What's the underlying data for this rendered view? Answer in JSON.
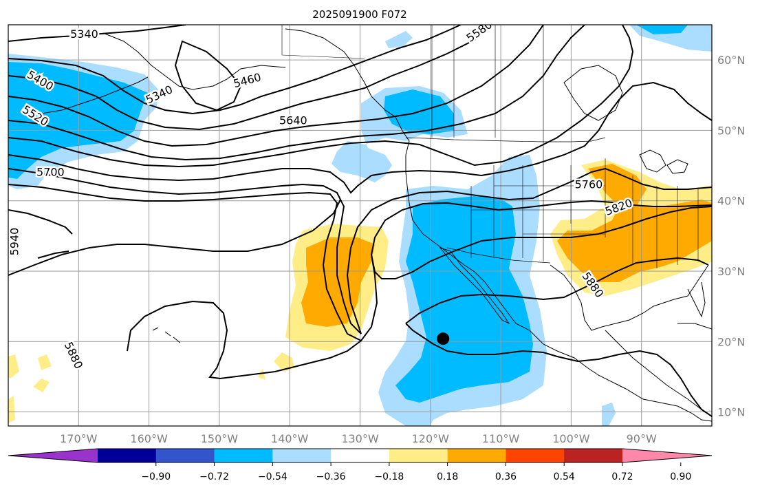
{
  "title": "2025091900 F072",
  "map": {
    "lon_range": [
      -180,
      -80
    ],
    "lat_range": [
      8,
      65
    ],
    "meridians": [
      -170,
      -160,
      -150,
      -140,
      -130,
      -120,
      -110,
      -100,
      -90
    ],
    "parallels": [
      10,
      20,
      30,
      40,
      50,
      60
    ],
    "lon_labels": [
      "170°W",
      "160°W",
      "150°W",
      "140°W",
      "130°W",
      "120°W",
      "110°W",
      "100°W",
      "90°W"
    ],
    "lat_labels": [
      "10°N",
      "20°N",
      "30°N",
      "40°N",
      "50°N",
      "60°N"
    ],
    "marker": {
      "name": "storm-center",
      "lon": -118.2,
      "lat": 20.4
    }
  },
  "contour_labels": [
    {
      "text": "5340",
      "lon": -169.2,
      "lat": 63.6,
      "angle": 0
    },
    {
      "text": "5400",
      "lon": -175.5,
      "lat": 57.0,
      "angle": 30
    },
    {
      "text": "5520",
      "lon": -176.2,
      "lat": 52.0,
      "angle": 32
    },
    {
      "text": "5340",
      "lon": -158.5,
      "lat": 55.0,
      "angle": -25
    },
    {
      "text": "5460",
      "lon": -146.0,
      "lat": 57.0,
      "angle": -15
    },
    {
      "text": "5580",
      "lon": -113.0,
      "lat": 64.0,
      "angle": -35
    },
    {
      "text": "5640",
      "lon": -139.5,
      "lat": 51.3,
      "angle": 0
    },
    {
      "text": "5700",
      "lon": -174.0,
      "lat": 44.0,
      "angle": 0
    },
    {
      "text": "5940",
      "lon": -179.0,
      "lat": 34.2,
      "angle": -90
    },
    {
      "text": "5880",
      "lon": -170.8,
      "lat": 18.0,
      "angle": 65
    },
    {
      "text": "5760",
      "lon": -97.5,
      "lat": 42.2,
      "angle": 0
    },
    {
      "text": "5820",
      "lon": -93.2,
      "lat": 39.0,
      "angle": -20
    },
    {
      "text": "5880",
      "lon": -97.0,
      "lat": 28.0,
      "angle": 55
    }
  ],
  "colorbar": {
    "colors": [
      "#9933cc",
      "#000099",
      "#3355cc",
      "#00bbff",
      "#aaddff",
      "#ffffff",
      "#ffee88",
      "#ffaa00",
      "#ff4400",
      "#bb2222",
      "#ff88aa"
    ],
    "tick_labels": [
      "−0.90",
      "−0.72",
      "−0.54",
      "−0.36",
      "−0.18",
      "0.18",
      "0.36",
      "0.54",
      "0.72",
      "0.90"
    ]
  }
}
